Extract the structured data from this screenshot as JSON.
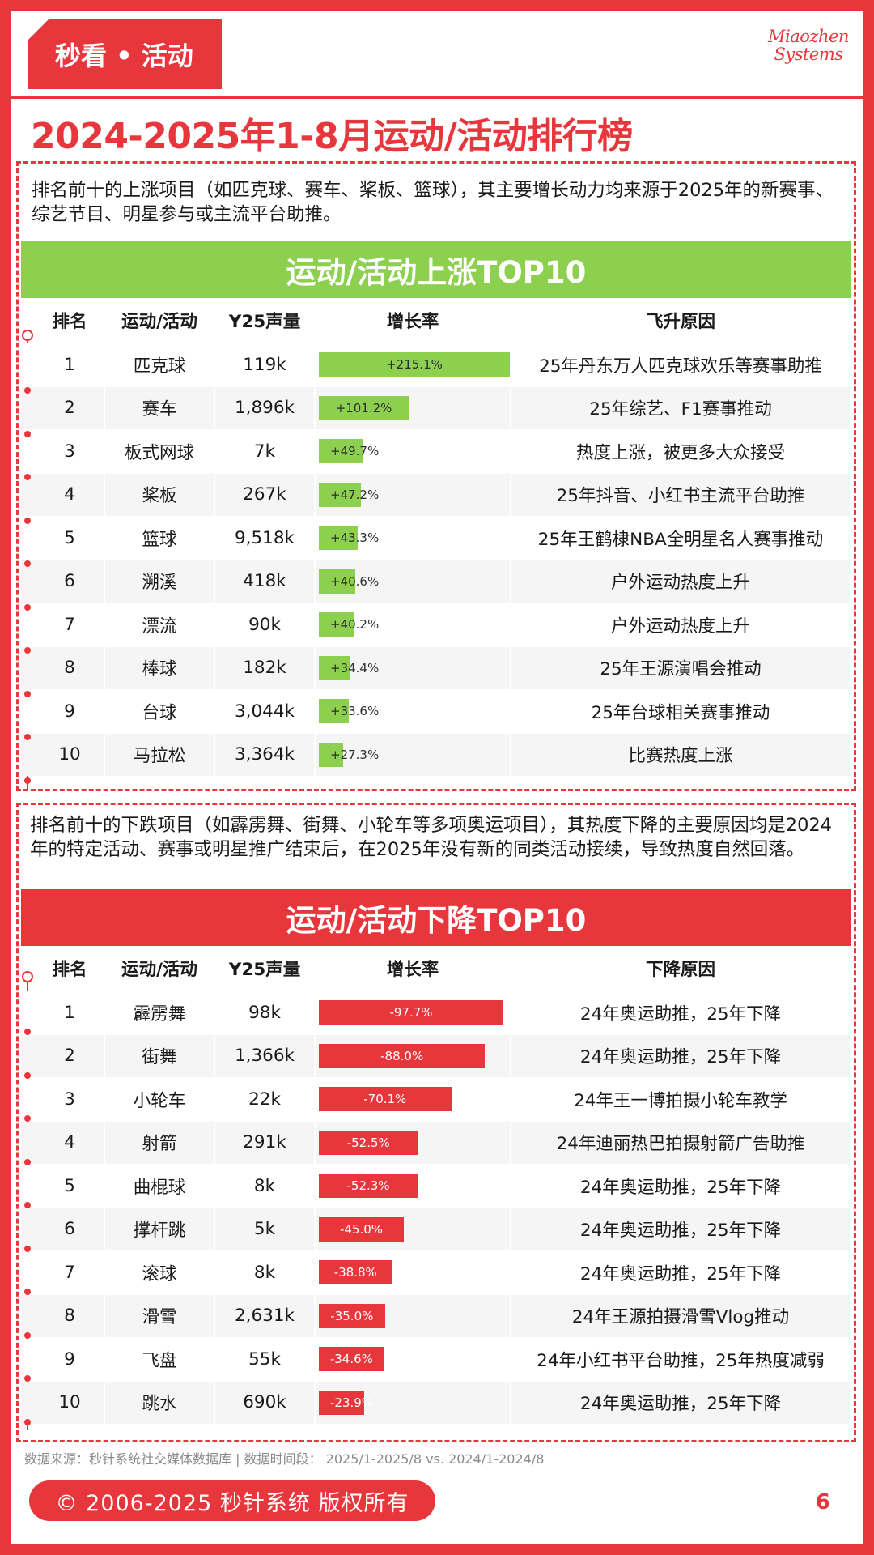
{
  "header": {
    "tag": "秒看 • 活动",
    "logo_line1": "Miaozhen",
    "logo_line2": "Systems",
    "title": "2024-2025年1-8月运动/活动排行榜"
  },
  "rise": {
    "intro": "排名前十的上涨项目（如匹克球、赛车、桨板、篮球），其主要增长动力均来源于2025年的新赛事、综艺节目、明星参与或主流平台助推。",
    "banner": "运动/活动上涨TOP10",
    "headers": {
      "rank": "排名",
      "name": "运动/活动",
      "volume": "Y25声量",
      "rate": "增长率",
      "reason": "飞升原因"
    },
    "rows": [
      {
        "rank": "1",
        "name": "匹克球",
        "volume": "119k",
        "rate_label": "+215.1%",
        "rate": 215.1,
        "reason": "25年丹东万人匹克球欢乐等赛事助推"
      },
      {
        "rank": "2",
        "name": "赛车",
        "volume": "1,896k",
        "rate_label": "+101.2%",
        "rate": 101.2,
        "reason": "25年综艺、F1赛事推动"
      },
      {
        "rank": "3",
        "name": "板式网球",
        "volume": "7k",
        "rate_label": "+49.7%",
        "rate": 49.7,
        "reason": "热度上涨，被更多大众接受"
      },
      {
        "rank": "4",
        "name": "桨板",
        "volume": "267k",
        "rate_label": "+47.2%",
        "rate": 47.2,
        "reason": "25年抖音、小红书主流平台助推"
      },
      {
        "rank": "5",
        "name": "篮球",
        "volume": "9,518k",
        "rate_label": "+43.3%",
        "rate": 43.3,
        "reason": "25年王鹤棣NBA全明星名人赛事推动"
      },
      {
        "rank": "6",
        "name": "溯溪",
        "volume": "418k",
        "rate_label": "+40.6%",
        "rate": 40.6,
        "reason": "户外运动热度上升"
      },
      {
        "rank": "7",
        "name": "漂流",
        "volume": "90k",
        "rate_label": "+40.2%",
        "rate": 40.2,
        "reason": "户外运动热度上升"
      },
      {
        "rank": "8",
        "name": "棒球",
        "volume": "182k",
        "rate_label": "+34.4%",
        "rate": 34.4,
        "reason": "25年王源演唱会推动"
      },
      {
        "rank": "9",
        "name": "台球",
        "volume": "3,044k",
        "rate_label": "+33.6%",
        "rate": 33.6,
        "reason": "25年台球相关赛事推动"
      },
      {
        "rank": "10",
        "name": "马拉松",
        "volume": "3,364k",
        "rate_label": "+27.3%",
        "rate": 27.3,
        "reason": "比赛热度上涨"
      }
    ]
  },
  "fall": {
    "intro": "排名前十的下跌项目（如霹雳舞、街舞、小轮车等多项奥运项目），其热度下降的主要原因均是2024年的特定活动、赛事或明星推广结束后，在2025年没有新的同类活动接续，导致热度自然回落。",
    "banner": "运动/活动下降TOP10",
    "headers": {
      "rank": "排名",
      "name": "运动/活动",
      "volume": "Y25声量",
      "rate": "增长率",
      "reason": "下降原因"
    },
    "rows": [
      {
        "rank": "1",
        "name": "霹雳舞",
        "volume": "98k",
        "rate_label": "-97.7%",
        "rate": -97.7,
        "reason": "24年奥运助推，25年下降"
      },
      {
        "rank": "2",
        "name": "街舞",
        "volume": "1,366k",
        "rate_label": "-88.0%",
        "rate": -88.0,
        "reason": "24年奥运助推，25年下降"
      },
      {
        "rank": "3",
        "name": "小轮车",
        "volume": "22k",
        "rate_label": "-70.1%",
        "rate": -70.1,
        "reason": "24年王一博拍摄小轮车教学"
      },
      {
        "rank": "4",
        "name": "射箭",
        "volume": "291k",
        "rate_label": "-52.5%",
        "rate": -52.5,
        "reason": "24年迪丽热巴拍摄射箭广告助推"
      },
      {
        "rank": "5",
        "name": "曲棍球",
        "volume": "8k",
        "rate_label": "-52.3%",
        "rate": -52.3,
        "reason": "24年奥运助推，25年下降"
      },
      {
        "rank": "6",
        "name": "撑杆跳",
        "volume": "5k",
        "rate_label": "-45.0%",
        "rate": -45.0,
        "reason": "24年奥运助推，25年下降"
      },
      {
        "rank": "7",
        "name": "滚球",
        "volume": "8k",
        "rate_label": "-38.8%",
        "rate": -38.8,
        "reason": "24年奥运助推，25年下降"
      },
      {
        "rank": "8",
        "name": "滑雪",
        "volume": "2,631k",
        "rate_label": "-35.0%",
        "rate": -35.0,
        "reason": "24年王源拍摄滑雪Vlog推动"
      },
      {
        "rank": "9",
        "name": "飞盘",
        "volume": "55k",
        "rate_label": "-34.6%",
        "rate": -34.6,
        "reason": "24年小红书平台助推，25年热度减弱"
      },
      {
        "rank": "10",
        "name": "跳水",
        "volume": "690k",
        "rate_label": "-23.9%",
        "rate": -23.9,
        "reason": "24年奥运助推，25年下降"
      }
    ]
  },
  "footer": {
    "source": "数据来源：秒针系统社交媒体数据库 |   数据时间段：  2025/1-2025/8 vs. 2024/1-2024/8",
    "copyright": "© 2006-2025 秒针系统 版权所有",
    "page": "6"
  },
  "colors": {
    "accent_red": "#e8373c",
    "accent_green": "#8dcf4e"
  }
}
